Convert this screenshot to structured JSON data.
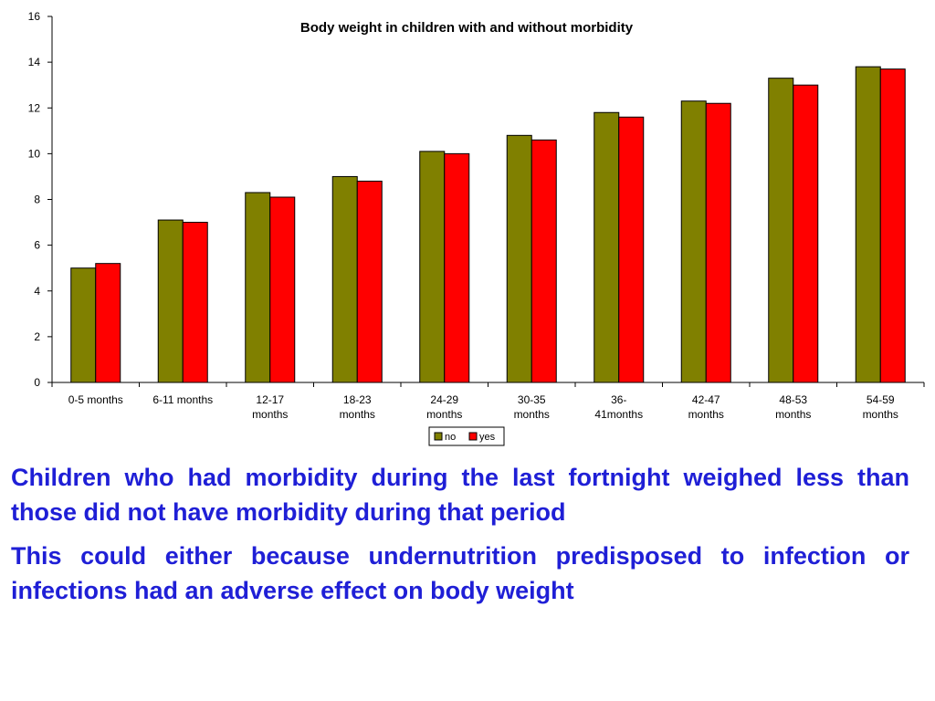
{
  "chart_data": {
    "type": "bar",
    "title": "Body weight in children with and without morbidity",
    "categories": [
      [
        "0-5  months"
      ],
      [
        "6-11 months"
      ],
      [
        "12-17",
        "months"
      ],
      [
        "18-23",
        "months"
      ],
      [
        "24-29",
        "months"
      ],
      [
        "30-35",
        "months"
      ],
      [
        "36-",
        "41months"
      ],
      [
        "42-47",
        "months"
      ],
      [
        "48-53",
        "months"
      ],
      [
        "54-59",
        "months"
      ]
    ],
    "series": [
      {
        "name": "no",
        "color": "#808000",
        "values": [
          5.0,
          7.1,
          8.3,
          9.0,
          10.1,
          10.8,
          11.8,
          12.3,
          13.3,
          13.8
        ]
      },
      {
        "name": "yes",
        "color": "#ff0000",
        "values": [
          5.2,
          7.0,
          8.1,
          8.8,
          10.0,
          10.6,
          11.6,
          12.2,
          13.0,
          13.7
        ]
      }
    ],
    "ylim": [
      0,
      16
    ],
    "yticks": [
      0,
      2,
      4,
      6,
      8,
      10,
      12,
      14,
      16
    ],
    "xlabel": "",
    "ylabel": "",
    "grid": false,
    "legend": "bottom-center"
  },
  "text": {
    "paragraph1": "Children who had morbidity during the last fortnight weighed less than those did not have morbidity during that period",
    "paragraph2": "This could either because undernutrition predisposed to infection or infections had an adverse effect on body weight"
  }
}
